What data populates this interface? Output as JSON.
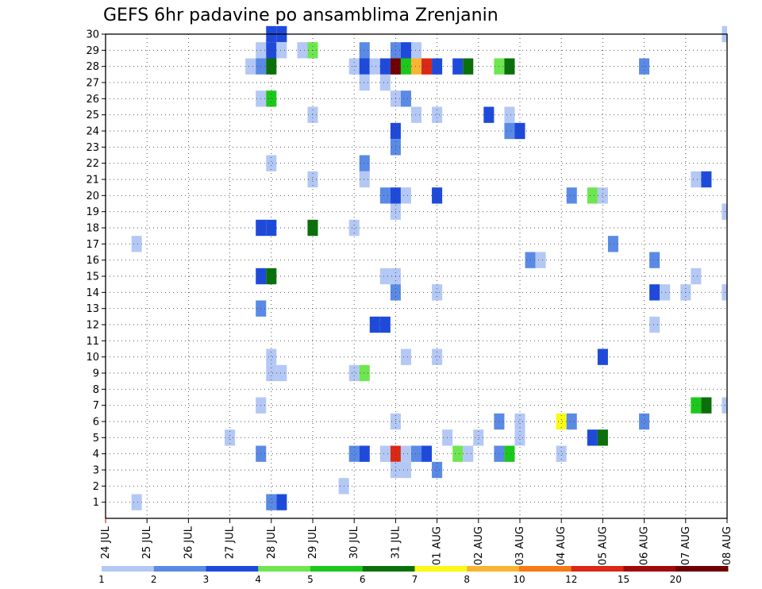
{
  "chart_data": {
    "type": "heatmap",
    "title": "GEFS 6hr padavine po ansamblima Zrenjanin",
    "xlabel": "",
    "ylabel": "",
    "x_ticks": [
      "24 JUL",
      "25 JUL",
      "26 JUL",
      "27 JUL",
      "28 JUL",
      "29 JUL",
      "30 JUL",
      "31 JUL",
      "01 AUG",
      "02 AUG",
      "03 AUG",
      "04 AUG",
      "05 AUG",
      "06 AUG",
      "07 AUG",
      "08 AUG"
    ],
    "xlim": [
      0,
      15
    ],
    "ylim": [
      0,
      30
    ],
    "y_ticks": [
      1,
      2,
      3,
      4,
      5,
      6,
      7,
      8,
      9,
      10,
      11,
      12,
      13,
      14,
      15,
      16,
      17,
      18,
      19,
      20,
      21,
      22,
      23,
      24,
      25,
      26,
      27,
      28,
      29,
      30
    ],
    "grid": true,
    "colorscale": {
      "levels": [
        "1",
        "2",
        "3",
        "4",
        "5",
        "6",
        "7",
        "8",
        "10",
        "12",
        "15",
        "20"
      ],
      "colors": [
        "#b4c8f5",
        "#5a8ae6",
        "#1e4adc",
        "#6ee650",
        "#1cc81c",
        "#0a700a",
        "#fafa14",
        "#fab432",
        "#fa7814",
        "#dc2814",
        "#a00a0a",
        "#6e0000"
      ]
    },
    "cells": [
      {
        "x": 0.75,
        "y": 17,
        "c": 0
      },
      {
        "x": 0.75,
        "y": 1,
        "c": 0
      },
      {
        "x": 3.0,
        "y": 5,
        "c": 0
      },
      {
        "x": 3.5,
        "y": 28,
        "c": 0
      },
      {
        "x": 3.75,
        "y": 29,
        "c": 0
      },
      {
        "x": 3.75,
        "y": 28,
        "c": 1
      },
      {
        "x": 3.75,
        "y": 26,
        "c": 0
      },
      {
        "x": 3.75,
        "y": 18,
        "c": 2
      },
      {
        "x": 3.75,
        "y": 15,
        "c": 2
      },
      {
        "x": 3.75,
        "y": 13,
        "c": 1
      },
      {
        "x": 3.75,
        "y": 7,
        "c": 0
      },
      {
        "x": 3.75,
        "y": 4,
        "c": 1
      },
      {
        "x": 4.0,
        "y": 30,
        "c": 2
      },
      {
        "x": 4.0,
        "y": 29,
        "c": 2
      },
      {
        "x": 4.0,
        "y": 28,
        "c": 5
      },
      {
        "x": 4.0,
        "y": 26,
        "c": 4
      },
      {
        "x": 4.0,
        "y": 22,
        "c": 0
      },
      {
        "x": 4.0,
        "y": 18,
        "c": 2
      },
      {
        "x": 4.0,
        "y": 15,
        "c": 5
      },
      {
        "x": 4.0,
        "y": 10,
        "c": 0
      },
      {
        "x": 4.0,
        "y": 9,
        "c": 0
      },
      {
        "x": 4.0,
        "y": 1,
        "c": 1
      },
      {
        "x": 4.25,
        "y": 30,
        "c": 2
      },
      {
        "x": 4.25,
        "y": 29,
        "c": 0
      },
      {
        "x": 4.25,
        "y": 9,
        "c": 0
      },
      {
        "x": 4.25,
        "y": 1,
        "c": 2
      },
      {
        "x": 4.75,
        "y": 29,
        "c": 0
      },
      {
        "x": 5.0,
        "y": 29,
        "c": 3
      },
      {
        "x": 5.0,
        "y": 25,
        "c": 0
      },
      {
        "x": 5.0,
        "y": 21,
        "c": 0
      },
      {
        "x": 5.0,
        "y": 18,
        "c": 5
      },
      {
        "x": 5.75,
        "y": 2,
        "c": 0
      },
      {
        "x": 6.0,
        "y": 28,
        "c": 0
      },
      {
        "x": 6.0,
        "y": 18,
        "c": 0
      },
      {
        "x": 6.0,
        "y": 9,
        "c": 0
      },
      {
        "x": 6.0,
        "y": 4,
        "c": 1
      },
      {
        "x": 6.25,
        "y": 29,
        "c": 1
      },
      {
        "x": 6.25,
        "y": 28,
        "c": 2
      },
      {
        "x": 6.25,
        "y": 27,
        "c": 0
      },
      {
        "x": 6.25,
        "y": 22,
        "c": 1
      },
      {
        "x": 6.25,
        "y": 21,
        "c": 0
      },
      {
        "x": 6.25,
        "y": 9,
        "c": 3
      },
      {
        "x": 6.25,
        "y": 4,
        "c": 2
      },
      {
        "x": 6.5,
        "y": 28,
        "c": 0
      },
      {
        "x": 6.5,
        "y": 12,
        "c": 2
      },
      {
        "x": 6.75,
        "y": 28,
        "c": 2
      },
      {
        "x": 6.75,
        "y": 27,
        "c": 0
      },
      {
        "x": 6.75,
        "y": 20,
        "c": 1
      },
      {
        "x": 6.75,
        "y": 15,
        "c": 0
      },
      {
        "x": 6.75,
        "y": 12,
        "c": 2
      },
      {
        "x": 6.75,
        "y": 4,
        "c": 0
      },
      {
        "x": 7.0,
        "y": 29,
        "c": 1
      },
      {
        "x": 7.0,
        "y": 28,
        "c": 11
      },
      {
        "x": 7.0,
        "y": 26,
        "c": 0
      },
      {
        "x": 7.0,
        "y": 24,
        "c": 2
      },
      {
        "x": 7.0,
        "y": 23,
        "c": 1
      },
      {
        "x": 7.0,
        "y": 20,
        "c": 2
      },
      {
        "x": 7.0,
        "y": 19,
        "c": 0
      },
      {
        "x": 7.0,
        "y": 15,
        "c": 0
      },
      {
        "x": 7.0,
        "y": 14,
        "c": 1
      },
      {
        "x": 7.0,
        "y": 6,
        "c": 0
      },
      {
        "x": 7.0,
        "y": 4,
        "c": 9
      },
      {
        "x": 7.0,
        "y": 3,
        "c": 0
      },
      {
        "x": 7.25,
        "y": 29,
        "c": 2
      },
      {
        "x": 7.25,
        "y": 28,
        "c": 4
      },
      {
        "x": 7.25,
        "y": 26,
        "c": 1
      },
      {
        "x": 7.25,
        "y": 20,
        "c": 0
      },
      {
        "x": 7.25,
        "y": 10,
        "c": 0
      },
      {
        "x": 7.25,
        "y": 4,
        "c": 0
      },
      {
        "x": 7.25,
        "y": 3,
        "c": 0
      },
      {
        "x": 7.5,
        "y": 29,
        "c": 0
      },
      {
        "x": 7.5,
        "y": 28,
        "c": 7
      },
      {
        "x": 7.5,
        "y": 25,
        "c": 0
      },
      {
        "x": 7.5,
        "y": 4,
        "c": 1
      },
      {
        "x": 7.75,
        "y": 28,
        "c": 9
      },
      {
        "x": 7.75,
        "y": 4,
        "c": 2
      },
      {
        "x": 8.0,
        "y": 28,
        "c": 2
      },
      {
        "x": 8.0,
        "y": 25,
        "c": 0
      },
      {
        "x": 8.0,
        "y": 20,
        "c": 2
      },
      {
        "x": 8.0,
        "y": 14,
        "c": 0
      },
      {
        "x": 8.0,
        "y": 10,
        "c": 0
      },
      {
        "x": 8.0,
        "y": 3,
        "c": 1
      },
      {
        "x": 8.25,
        "y": 5,
        "c": 0
      },
      {
        "x": 8.5,
        "y": 28,
        "c": 2
      },
      {
        "x": 8.5,
        "y": 4,
        "c": 3
      },
      {
        "x": 8.75,
        "y": 28,
        "c": 5
      },
      {
        "x": 8.75,
        "y": 4,
        "c": 0
      },
      {
        "x": 9.0,
        "y": 5,
        "c": 0
      },
      {
        "x": 9.25,
        "y": 25,
        "c": 2
      },
      {
        "x": 9.5,
        "y": 28,
        "c": 3
      },
      {
        "x": 9.5,
        "y": 6,
        "c": 1
      },
      {
        "x": 9.5,
        "y": 4,
        "c": 1
      },
      {
        "x": 9.75,
        "y": 28,
        "c": 5
      },
      {
        "x": 9.75,
        "y": 25,
        "c": 0
      },
      {
        "x": 9.75,
        "y": 24,
        "c": 1
      },
      {
        "x": 9.75,
        "y": 4,
        "c": 4
      },
      {
        "x": 10.0,
        "y": 24,
        "c": 2
      },
      {
        "x": 10.0,
        "y": 6,
        "c": 0
      },
      {
        "x": 10.0,
        "y": 5,
        "c": 0
      },
      {
        "x": 10.25,
        "y": 16,
        "c": 1
      },
      {
        "x": 10.5,
        "y": 16,
        "c": 0
      },
      {
        "x": 11.0,
        "y": 6,
        "c": 6
      },
      {
        "x": 11.0,
        "y": 4,
        "c": 0
      },
      {
        "x": 11.25,
        "y": 20,
        "c": 1
      },
      {
        "x": 11.25,
        "y": 6,
        "c": 1
      },
      {
        "x": 11.75,
        "y": 20,
        "c": 3
      },
      {
        "x": 11.75,
        "y": 5,
        "c": 2
      },
      {
        "x": 12.0,
        "y": 20,
        "c": 0
      },
      {
        "x": 12.0,
        "y": 10,
        "c": 2
      },
      {
        "x": 12.0,
        "y": 5,
        "c": 5
      },
      {
        "x": 12.25,
        "y": 17,
        "c": 1
      },
      {
        "x": 13.0,
        "y": 28,
        "c": 1
      },
      {
        "x": 13.0,
        "y": 6,
        "c": 1
      },
      {
        "x": 13.25,
        "y": 16,
        "c": 1
      },
      {
        "x": 13.25,
        "y": 14,
        "c": 2
      },
      {
        "x": 13.25,
        "y": 12,
        "c": 0
      },
      {
        "x": 13.5,
        "y": 14,
        "c": 0
      },
      {
        "x": 14.0,
        "y": 14,
        "c": 0
      },
      {
        "x": 14.25,
        "y": 21,
        "c": 0
      },
      {
        "x": 14.25,
        "y": 15,
        "c": 0
      },
      {
        "x": 14.25,
        "y": 7,
        "c": 4
      },
      {
        "x": 14.5,
        "y": 21,
        "c": 2
      },
      {
        "x": 14.5,
        "y": 7,
        "c": 5
      },
      {
        "x": 15.0,
        "y": 30,
        "c": 0
      },
      {
        "x": 15.0,
        "y": 19,
        "c": 0
      },
      {
        "x": 15.0,
        "y": 14,
        "c": 0
      },
      {
        "x": 15.0,
        "y": 7,
        "c": 0
      }
    ]
  }
}
